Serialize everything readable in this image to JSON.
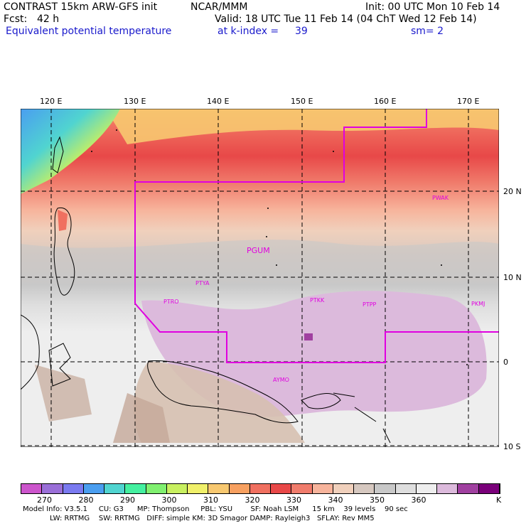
{
  "header": {
    "title": "CONTRAST 15km ARW-GFS init",
    "org": "NCAR/MMM",
    "init": "Init: 00 UTC Mon 10 Feb 14",
    "fcst_label": "Fcst:",
    "fcst_value": "42 h",
    "valid": "Valid: 18 UTC Tue 11 Feb 14 (04 ChT Wed 12 Feb 14)",
    "field": "Equivalent potential temperature",
    "level": "at k-index =",
    "level_value": "39",
    "smooth": "sm= 2"
  },
  "axes": {
    "longitudes": [
      "120 E",
      "130 E",
      "140 E",
      "150 E",
      "160 E",
      "170 E"
    ],
    "latitudes": [
      "20 N",
      "10 N",
      "0",
      "10 S"
    ]
  },
  "stations": [
    "PWAK",
    "PGUM",
    "PTYA",
    "PTRO",
    "PTKK",
    "PTPP",
    "PKMJ",
    "AYMO"
  ],
  "colorbar": {
    "labels": [
      "270",
      "280",
      "290",
      "300",
      "310",
      "320",
      "330",
      "340",
      "350",
      "360"
    ],
    "unit": "K",
    "colors": [
      "#cc55cc",
      "#9a6fd8",
      "#7a7af0",
      "#4a9ef0",
      "#50d4d0",
      "#44f0a0",
      "#80f070",
      "#c8f060",
      "#f0f06a",
      "#f7c870",
      "#f7a060",
      "#f07060",
      "#e84848",
      "#f07c6c",
      "#f7b49c",
      "#f0d0bc",
      "#d6c8c0",
      "#c8c8c8",
      "#dedede",
      "#eeeeee",
      "#dcbadc",
      "#a040a0",
      "#7a007a"
    ]
  },
  "model_info": {
    "line1": "Model Info: V3.5.1     CU: G3      MP: Thompson     PBL: YSU        SF: Noah LSM      15 km    39 levels    90 sec",
    "line2": "LW: RRTMG    SW: RRTMG   DIFF: simple KM: 3D Smagor DAMP: Rayleigh3   SFLAY: Rev MM5"
  }
}
